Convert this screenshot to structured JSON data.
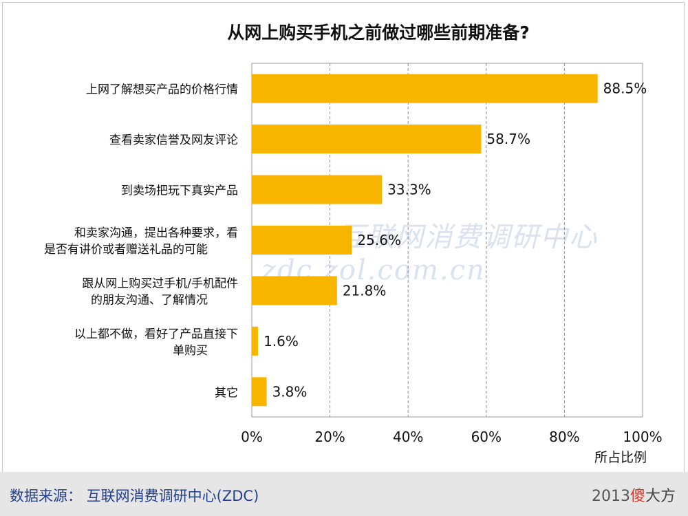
{
  "title": "从网上购买手机之前做过哪些前期准备?",
  "chart_data": {
    "type": "bar",
    "orientation": "horizontal",
    "title": "从网上购买手机之前做过哪些前期准备?",
    "xlabel": "所占比例",
    "ylabel": "",
    "xlim": [
      0,
      100
    ],
    "x_ticks": [
      "0%",
      "20%",
      "40%",
      "60%",
      "80%",
      "100%"
    ],
    "grid": "vertical dashed",
    "bar_color": "#f7b500",
    "categories": [
      [
        "上网了解想买产品的价格行情"
      ],
      [
        "查看卖家信誉及网友评论"
      ],
      [
        "到卖场把玩下真实产品"
      ],
      [
        "和卖家沟通，提出各种要求，看",
        "是否有讲价或者赠送礼品的可能"
      ],
      [
        "跟从网上购买过手机/手机配件",
        "的朋友沟通、了解情况"
      ],
      [
        "以上都不做，看好了产品直接下",
        "单购买"
      ],
      [
        "其它"
      ]
    ],
    "values": [
      88.5,
      58.7,
      33.3,
      25.6,
      21.8,
      1.6,
      3.8
    ],
    "value_labels": [
      "88.5%",
      "58.7%",
      "33.3%",
      "25.6%",
      "21.8%",
      "1.6%",
      "3.8%"
    ]
  },
  "watermark": "ZDC 互联网消费调研中心 zdc.zol.com.cn",
  "footer": {
    "source": "数据来源：  互联网消费调研中心(ZDC)",
    "year": "2013",
    "brand_hi": "傻",
    "brand_rest": "大方"
  }
}
